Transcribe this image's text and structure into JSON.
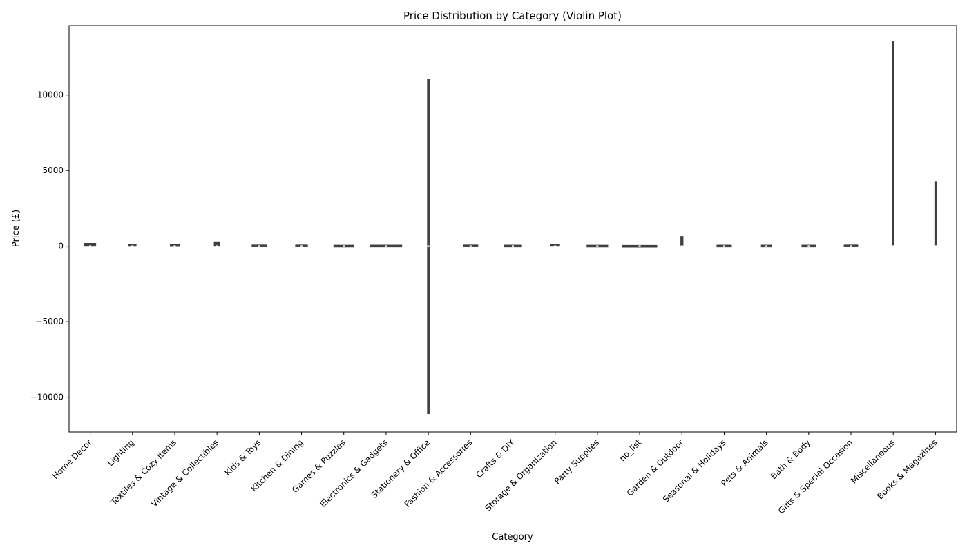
{
  "chart_data": {
    "type": "violin",
    "title": "Price Distribution by Category (Violin Plot)",
    "xlabel": "Category",
    "ylabel": "Price (£)",
    "ylim": [
      -12300,
      14600
    ],
    "yticks": [
      -10000,
      -5000,
      0,
      5000,
      10000
    ],
    "ytick_labels": [
      "−10000",
      "−5000",
      "0",
      "5000",
      "10000"
    ],
    "grid": false,
    "colors": {
      "fill": "#3f3f3f",
      "median": "#ffffff",
      "axis": "#000000"
    },
    "categories": [
      "Home Decor",
      "Lighting",
      "Textiles & Cozy Items",
      "Vintage & Collectibles",
      "Kids & Toys",
      "Kitchen & Dining",
      "Games & Puzzles",
      "Electronics & Gadgets",
      "Stationery & Office",
      "Fashion & Accessories",
      "Crafts & DIY",
      "Storage & Organization",
      "Party Supplies",
      "no_list",
      "Garden & Outdoor",
      "Seasonal & Holidays",
      "Pets & Animals",
      "Bath & Body",
      "Gifts & Special Occasion",
      "Miscellaneous",
      "Books & Magazines"
    ],
    "series": [
      {
        "category": "Home Decor",
        "min": -10,
        "max": 200,
        "median": 3,
        "width": 0.27
      },
      {
        "category": "Lighting",
        "min": -10,
        "max": 120,
        "median": 5,
        "width": 0.18
      },
      {
        "category": "Textiles & Cozy Items",
        "min": -10,
        "max": 100,
        "median": 3,
        "width": 0.22
      },
      {
        "category": "Vintage & Collectibles",
        "min": -10,
        "max": 300,
        "median": 4,
        "width": 0.14
      },
      {
        "category": "Kids & Toys",
        "min": -10,
        "max": 60,
        "median": 2,
        "width": 0.35
      },
      {
        "category": "Kitchen & Dining",
        "min": -10,
        "max": 60,
        "median": 3,
        "width": 0.29
      },
      {
        "category": "Games & Puzzles",
        "min": -20,
        "max": 40,
        "median": 2,
        "width": 0.48
      },
      {
        "category": "Electronics & Gadgets",
        "min": -10,
        "max": 40,
        "median": 3,
        "width": 0.75
      },
      {
        "category": "Stationery & Office",
        "min": -11100,
        "max": 11050,
        "median": 2,
        "width": 0.05
      },
      {
        "category": "Fashion & Accessories",
        "min": -10,
        "max": 60,
        "median": 3,
        "width": 0.35
      },
      {
        "category": "Crafts & DIY",
        "min": -10,
        "max": 40,
        "median": 2,
        "width": 0.42
      },
      {
        "category": "Storage & Organization",
        "min": -10,
        "max": 150,
        "median": 3,
        "width": 0.22
      },
      {
        "category": "Party Supplies",
        "min": -10,
        "max": 30,
        "median": 1,
        "width": 0.5
      },
      {
        "category": "no_list",
        "min": -60,
        "max": 60,
        "median": 5,
        "width": 0.82
      },
      {
        "category": "Garden & Outdoor",
        "min": -10,
        "max": 650,
        "median": 5,
        "width": 0.06
      },
      {
        "category": "Seasonal & Holidays",
        "min": -10,
        "max": 40,
        "median": 2,
        "width": 0.35
      },
      {
        "category": "Pets & Animals",
        "min": -10,
        "max": 40,
        "median": 2,
        "width": 0.25
      },
      {
        "category": "Bath & Body",
        "min": -10,
        "max": 40,
        "median": 2,
        "width": 0.33
      },
      {
        "category": "Gifts & Special Occasion",
        "min": -10,
        "max": 60,
        "median": 3,
        "width": 0.33
      },
      {
        "category": "Miscellaneous",
        "min": 0,
        "max": 13550,
        "median": 5,
        "width": 0.03
      },
      {
        "category": "Books & Magazines",
        "min": 0,
        "max": 4250,
        "median": 5,
        "width": 0.025
      }
    ]
  }
}
